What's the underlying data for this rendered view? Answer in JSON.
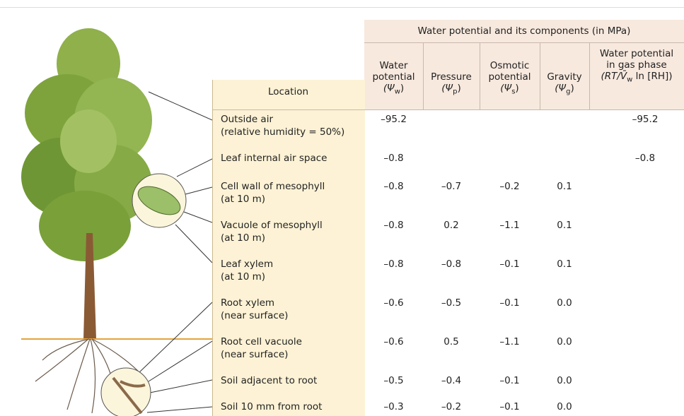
{
  "header": {
    "group_title": "Water potential and its components (in MPa)",
    "location_label": "Location",
    "columns": [
      {
        "label": [
          "Water",
          "potential"
        ],
        "symbol": {
          "before": "(Ψ",
          "sub": "w",
          "after": ")"
        }
      },
      {
        "label": [
          "Pressure"
        ],
        "symbol": {
          "before": "(Ψ",
          "sub": "p",
          "after": ")"
        }
      },
      {
        "label": [
          "Osmotic",
          "potential"
        ],
        "symbol": {
          "before": "(Ψ",
          "sub": "s",
          "after": ")"
        }
      },
      {
        "label": [
          "Gravity"
        ],
        "symbol": {
          "before": "(Ψ",
          "sub": "g",
          "after": ")"
        }
      },
      {
        "label": [
          "Water potential",
          "in gas phase"
        ],
        "symbol": {
          "before": "(RT/V̄",
          "sub": "w",
          "after": " ln [RH])"
        }
      }
    ]
  },
  "rows": [
    {
      "location": [
        "Outside air",
        "(relative humidity = 50%)"
      ],
      "values": [
        "–95.2",
        null,
        null,
        null,
        "–95.2"
      ]
    },
    {
      "location": [
        "Leaf internal air space"
      ],
      "values": [
        "–0.8",
        null,
        null,
        null,
        "–0.8"
      ]
    },
    {
      "location": [
        "Cell wall of mesophyll",
        "(at 10 m)"
      ],
      "values": [
        "–0.8",
        "–0.7",
        "–0.2",
        "0.1",
        null
      ]
    },
    {
      "location": [
        "Vacuole of mesophyll",
        "(at 10 m)"
      ],
      "values": [
        "–0.8",
        "0.2",
        "–1.1",
        "0.1",
        null
      ]
    },
    {
      "location": [
        "Leaf xylem",
        "(at 10 m)"
      ],
      "values": [
        "–0.8",
        "–0.8",
        "–0.1",
        "0.1",
        null
      ]
    },
    {
      "location": [
        "Root xylem",
        "(near surface)"
      ],
      "values": [
        "–0.6",
        "–0.5",
        "–0.1",
        "0.0",
        null
      ]
    },
    {
      "location": [
        "Root cell vacuole",
        "(near surface)"
      ],
      "values": [
        "–0.6",
        "0.5",
        "–1.1",
        "0.0",
        null
      ]
    },
    {
      "location": [
        "Soil adjacent to root"
      ],
      "values": [
        "–0.5",
        "–0.4",
        "–0.1",
        "0.0",
        null
      ]
    },
    {
      "location": [
        "Soil 10 mm from root"
      ],
      "values": [
        "–0.3",
        "–0.2",
        "–0.1",
        "0.0",
        null
      ]
    }
  ]
}
